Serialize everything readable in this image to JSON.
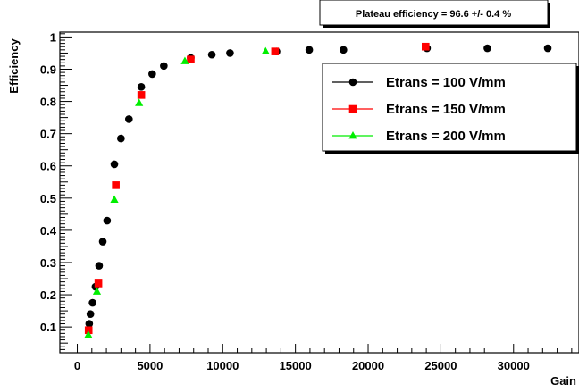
{
  "chart_data": {
    "type": "scatter",
    "title": "",
    "xlabel": "Gain",
    "ylabel": "Efficiency",
    "xlim": [
      -1200,
      34500
    ],
    "ylim": [
      0.02,
      1.015
    ],
    "x_ticks": [
      0,
      5000,
      10000,
      15000,
      20000,
      25000,
      30000
    ],
    "x_tick_labels": [
      "0",
      "5000",
      "10000",
      "15000",
      "20000",
      "25000",
      "30000"
    ],
    "y_ticks": [
      0.1,
      0.2,
      0.3,
      0.4,
      0.5,
      0.6,
      0.7,
      0.8,
      0.9,
      1.0
    ],
    "y_tick_labels": [
      "0.1",
      "0.2",
      "0.3",
      "0.4",
      "0.5",
      "0.6",
      "0.7",
      "0.8",
      "0.9",
      "1"
    ],
    "grid": false,
    "legend_position": "top-right",
    "stats_box": "Plateau efficiency = 96.6 +/- 0.4 %",
    "series": [
      {
        "name": "Etrans = 100 V/mm",
        "color": "#000000",
        "marker": "circle",
        "x": [
          820,
          900,
          1050,
          1250,
          1500,
          1750,
          2050,
          2550,
          3000,
          3550,
          4400,
          5150,
          5950,
          7800,
          9250,
          10500,
          13700,
          15950,
          18300,
          24050,
          28200,
          32350
        ],
        "y": [
          0.11,
          0.14,
          0.175,
          0.225,
          0.29,
          0.365,
          0.43,
          0.605,
          0.685,
          0.745,
          0.845,
          0.885,
          0.91,
          0.935,
          0.945,
          0.95,
          0.955,
          0.96,
          0.96,
          0.965,
          0.965,
          0.965
        ]
      },
      {
        "name": "Etrans = 150 V/mm",
        "color": "#ff0000",
        "marker": "square",
        "x": [
          780,
          1450,
          2650,
          4400,
          7800,
          13600,
          23950
        ],
        "y": [
          0.09,
          0.235,
          0.54,
          0.82,
          0.93,
          0.955,
          0.97
        ]
      },
      {
        "name": "Etrans = 200 V/mm",
        "color": "#00ee00",
        "marker": "triangle",
        "x": [
          760,
          1350,
          2550,
          4250,
          7400,
          12950
        ],
        "y": [
          0.075,
          0.21,
          0.495,
          0.795,
          0.925,
          0.955
        ]
      }
    ]
  }
}
